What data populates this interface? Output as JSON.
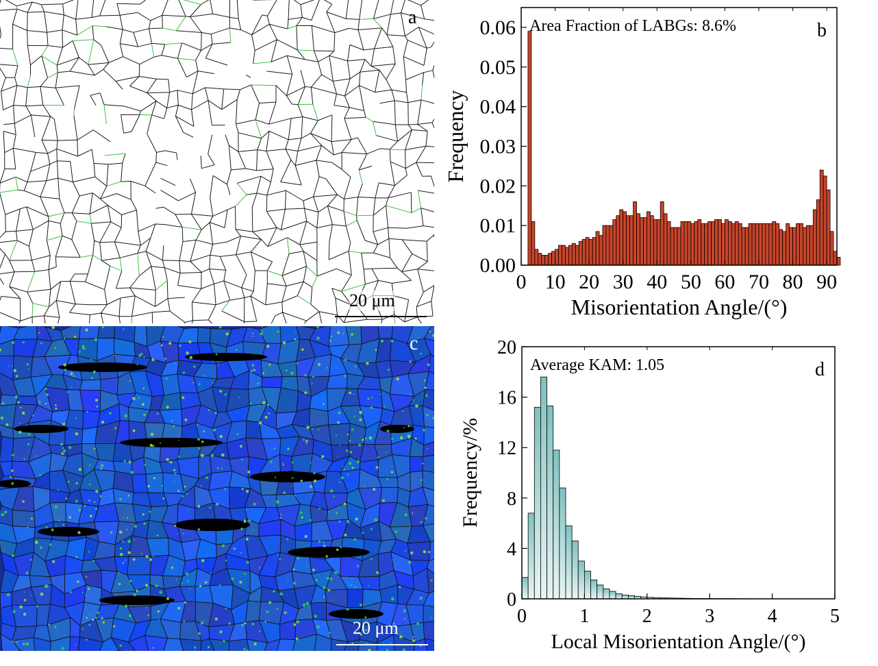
{
  "panel_a": {
    "letter": "a",
    "scale_label": "20 μm"
  },
  "panel_c": {
    "letter": "c",
    "scale_label": "20 μm"
  },
  "chart_data": [
    {
      "id": "b",
      "type": "bar",
      "letter": "b",
      "annotation": "Area Fraction of LABGs: 8.6%",
      "xlabel": "Misorientation Angle/(°)",
      "ylabel": "Frequency",
      "xlim": [
        0,
        93
      ],
      "ylim": [
        0,
        0.065
      ],
      "xticks": [
        0,
        10,
        20,
        30,
        40,
        50,
        60,
        70,
        80,
        90
      ],
      "yticks": [
        0.0,
        0.01,
        0.02,
        0.03,
        0.04,
        0.05,
        0.06
      ],
      "ytick_labels": [
        "0.00",
        "0.01",
        "0.02",
        "0.03",
        "0.04",
        "0.05",
        "0.06"
      ],
      "bin_width": 1,
      "x_start": 2,
      "values": [
        0.059,
        0.011,
        0.004,
        0.003,
        0.0025,
        0.0025,
        0.003,
        0.0035,
        0.004,
        0.005,
        0.005,
        0.0045,
        0.005,
        0.0055,
        0.005,
        0.006,
        0.0065,
        0.007,
        0.0065,
        0.007,
        0.0085,
        0.0075,
        0.01,
        0.01,
        0.01,
        0.0115,
        0.0125,
        0.014,
        0.0135,
        0.0125,
        0.0125,
        0.016,
        0.013,
        0.012,
        0.012,
        0.0135,
        0.0125,
        0.0115,
        0.0115,
        0.016,
        0.013,
        0.011,
        0.0095,
        0.0095,
        0.0095,
        0.011,
        0.011,
        0.011,
        0.0105,
        0.011,
        0.0115,
        0.0105,
        0.0105,
        0.011,
        0.011,
        0.0115,
        0.0115,
        0.0105,
        0.0115,
        0.011,
        0.0105,
        0.011,
        0.0105,
        0.0095,
        0.0095,
        0.0105,
        0.0105,
        0.0105,
        0.0105,
        0.0105,
        0.0105,
        0.0105,
        0.011,
        0.0105,
        0.009,
        0.0085,
        0.0105,
        0.0095,
        0.0095,
        0.0105,
        0.0105,
        0.0095,
        0.01,
        0.01,
        0.014,
        0.0165,
        0.024,
        0.0225,
        0.019,
        0.0085,
        0.0035,
        0.002
      ],
      "bar_color": "#c8452a"
    },
    {
      "id": "d",
      "type": "bar",
      "letter": "d",
      "annotation": "Average KAM: 1.05",
      "xlabel": "Local Misorientation Angle/(°)",
      "ylabel": "Frequency/%",
      "xlim": [
        0,
        5
      ],
      "ylim": [
        0,
        20
      ],
      "xticks": [
        0,
        1,
        2,
        3,
        4,
        5
      ],
      "yticks": [
        0,
        4,
        8,
        12,
        16,
        20
      ],
      "ytick_labels": [
        "0",
        "4",
        "8",
        "12",
        "16",
        "20"
      ],
      "bin_width": 0.1,
      "x_start": 0,
      "values": [
        1.7,
        6.8,
        15.2,
        17.6,
        15.3,
        11.8,
        8.8,
        5.8,
        4.6,
        3.0,
        2.2,
        1.5,
        1.1,
        0.8,
        0.6,
        0.4,
        0.3,
        0.25,
        0.2,
        0.15,
        0.12,
        0.1,
        0.08,
        0.07,
        0.06,
        0.05,
        0.04,
        0.035,
        0.03,
        0.03,
        0.025,
        0.02,
        0.02,
        0.02,
        0.015,
        0.015,
        0.01,
        0.01,
        0.01,
        0.01,
        0.01,
        0.01,
        0.01,
        0.01,
        0.01,
        0.01,
        0.01,
        0.01,
        0.01,
        0.01
      ],
      "bar_color_top": "#7ec1bf",
      "bar_color_bottom": "#e9f5f4"
    }
  ]
}
